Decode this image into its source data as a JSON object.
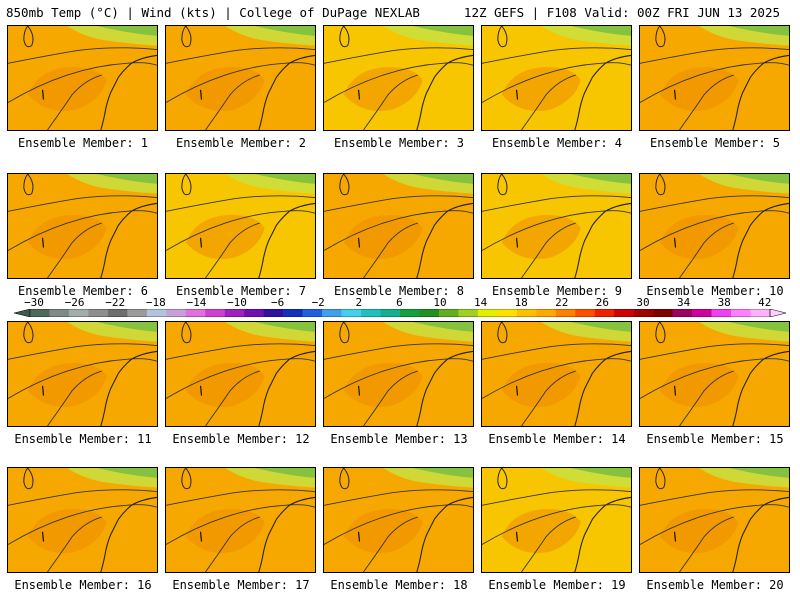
{
  "header": {
    "left": "850mb Temp (°C) | Wind (kts) | College of DuPage NEXLAB",
    "right": "12Z GEFS | F108 Valid: 00Z FRI JUN 13 2025"
  },
  "members": [
    {
      "label": "Ensemble Member: 1",
      "tone": "orange"
    },
    {
      "label": "Ensemble Member: 2",
      "tone": "orange"
    },
    {
      "label": "Ensemble Member: 3",
      "tone": "yellow"
    },
    {
      "label": "Ensemble Member: 4",
      "tone": "yellow"
    },
    {
      "label": "Ensemble Member: 5",
      "tone": "orange"
    },
    {
      "label": "Ensemble Member: 6",
      "tone": "orange"
    },
    {
      "label": "Ensemble Member: 7",
      "tone": "yellow"
    },
    {
      "label": "Ensemble Member: 8",
      "tone": "orange"
    },
    {
      "label": "Ensemble Member: 9",
      "tone": "yellow"
    },
    {
      "label": "Ensemble Member: 10",
      "tone": "orange"
    },
    {
      "label": "Ensemble Member: 11",
      "tone": "orange"
    },
    {
      "label": "Ensemble Member: 12",
      "tone": "orange"
    },
    {
      "label": "Ensemble Member: 13",
      "tone": "orange"
    },
    {
      "label": "Ensemble Member: 14",
      "tone": "orange"
    },
    {
      "label": "Ensemble Member: 15",
      "tone": "orange"
    },
    {
      "label": "Ensemble Member: 16",
      "tone": "orange"
    },
    {
      "label": "Ensemble Member: 17",
      "tone": "orange"
    },
    {
      "label": "Ensemble Member: 18",
      "tone": "orange"
    },
    {
      "label": "Ensemble Member: 19",
      "tone": "yellow"
    },
    {
      "label": "Ensemble Member: 20",
      "tone": "orange"
    }
  ],
  "colorbar": {
    "labels": [
      "−30",
      "−26",
      "−22",
      "−18",
      "−14",
      "−10",
      "−6",
      "−2",
      "2",
      "6",
      "10",
      "14",
      "18",
      "22",
      "26",
      "30",
      "34",
      "38",
      "42"
    ],
    "colors": [
      "#4d6a5c",
      "#7d8c87",
      "#a3abab",
      "#8e8e8e",
      "#6e6e6e",
      "#9a9a9a",
      "#b0c4de",
      "#c8a0d8",
      "#e070e0",
      "#d040d0",
      "#a020c0",
      "#7010b0",
      "#3010a0",
      "#1030c0",
      "#2060e0",
      "#40a0f0",
      "#40d0f0",
      "#20c0c0",
      "#10b090",
      "#10a040",
      "#209020",
      "#60b020",
      "#a0d020",
      "#e0f000",
      "#ffe000",
      "#ffc000",
      "#ffa800",
      "#ff8000",
      "#ff5000",
      "#f02000",
      "#d00000",
      "#a00000",
      "#800000",
      "#a00060",
      "#d000a0",
      "#f040f0",
      "#ff80ff",
      "#ffb0ff"
    ],
    "palette": {
      "orange": "#f7a800",
      "yellow": "#f7c600",
      "deep": "#f08c00",
      "green": "#7cc040",
      "lightgreen": "#c8e040"
    }
  }
}
